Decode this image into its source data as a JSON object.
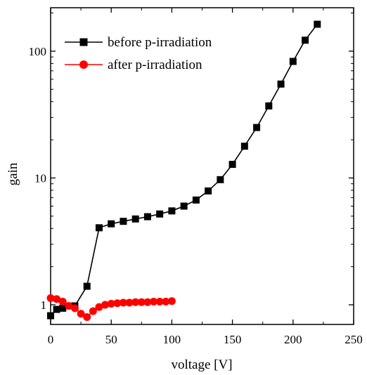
{
  "chart_data": {
    "type": "line",
    "title": "",
    "xlabel": "voltage [V]",
    "ylabel": "gain",
    "xlim": [
      0,
      250
    ],
    "ylim": [
      0.7,
      220
    ],
    "yscale": "log",
    "grid": false,
    "legend_position": "top-left",
    "x_ticks": [
      0,
      50,
      100,
      150,
      200,
      250
    ],
    "y_ticks": [
      1,
      10,
      100
    ],
    "x_tick_labels": [
      "0",
      "50",
      "100",
      "150",
      "200",
      "250"
    ],
    "y_tick_labels": [
      "1",
      "10",
      "100"
    ],
    "series": [
      {
        "name": "before p-irradiation",
        "color": "#000000",
        "marker": "square",
        "x": [
          0,
          5,
          10,
          20,
          30,
          40,
          50,
          60,
          70,
          80,
          90,
          100,
          110,
          120,
          130,
          140,
          150,
          160,
          170,
          180,
          190,
          200,
          210,
          220
        ],
        "y": [
          0.82,
          0.92,
          0.94,
          0.98,
          1.4,
          4.05,
          4.35,
          4.55,
          4.75,
          4.95,
          5.2,
          5.5,
          6.0,
          6.7,
          7.9,
          9.7,
          12.8,
          17.8,
          25,
          37,
          55,
          83,
          122,
          163
        ]
      },
      {
        "name": "after p-irradiation",
        "color": "#ff0000",
        "marker": "circle",
        "x": [
          0,
          5,
          10,
          15,
          20,
          25,
          30,
          35,
          40,
          45,
          50,
          55,
          60,
          65,
          70,
          75,
          80,
          85,
          90,
          95,
          100
        ],
        "y": [
          1.13,
          1.11,
          1.06,
          0.98,
          0.94,
          0.85,
          0.8,
          0.89,
          0.96,
          1.0,
          1.02,
          1.03,
          1.04,
          1.04,
          1.05,
          1.05,
          1.05,
          1.06,
          1.06,
          1.06,
          1.07
        ]
      }
    ]
  }
}
